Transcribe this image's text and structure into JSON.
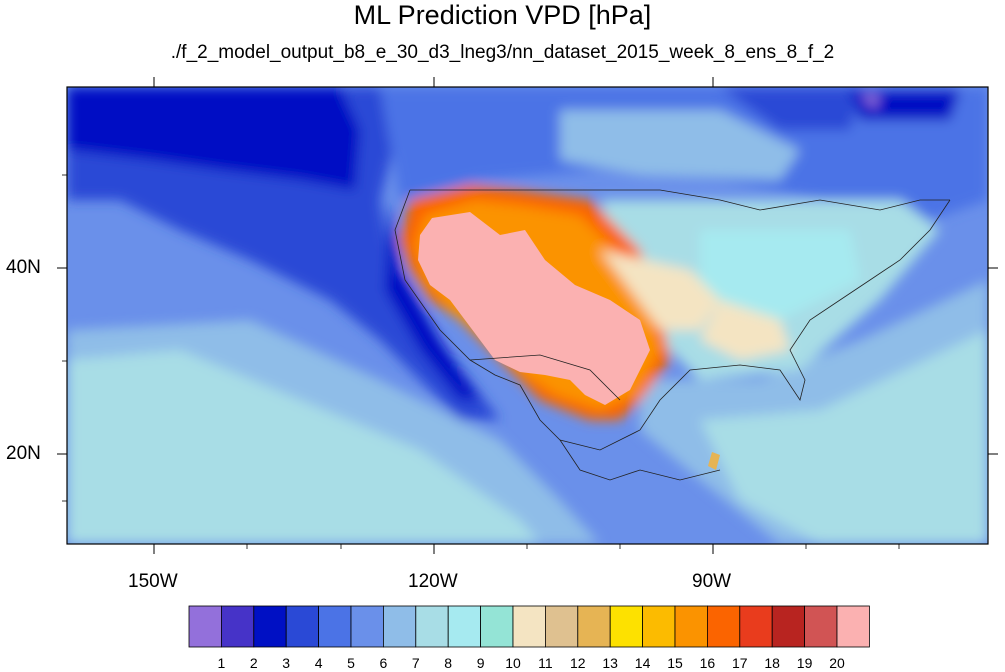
{
  "title": "ML Prediction VPD [hPa]",
  "subtitle": "./f_2_model_output_b8_e_30_d3_lneg3/nn_dataset_2015_week_8_ens_8_f_2",
  "map": {
    "region": "North America and eastern Pacific",
    "variable": "VPD",
    "units": "hPa",
    "lon_ticks": [
      {
        "lon": -150,
        "label": "150W"
      },
      {
        "lon": -120,
        "label": "120W"
      },
      {
        "lon": -90,
        "label": "90W"
      }
    ],
    "lat_ticks": [
      {
        "lat": 40,
        "label": "40N"
      },
      {
        "lat": 20,
        "label": "20N"
      }
    ],
    "lon_range": [
      -160,
      -60
    ],
    "lat_range": [
      11,
      60
    ]
  },
  "colorbar": {
    "labels": [
      "1",
      "2",
      "3",
      "4",
      "5",
      "6",
      "7",
      "8",
      "9",
      "10",
      "11",
      "12",
      "13",
      "14",
      "15",
      "16",
      "17",
      "18",
      "19",
      "20"
    ],
    "colors": [
      "#9370db",
      "#4633c8",
      "#0010c4",
      "#2a49d6",
      "#4b73e6",
      "#6a90ea",
      "#8fbde8",
      "#a8dde6",
      "#a6eaf0",
      "#94e4d6",
      "#f4e4c2",
      "#dfc190",
      "#e6b454",
      "#fde100",
      "#fcbb00",
      "#fb9300",
      "#fb6400",
      "#e93c1d",
      "#b82420",
      "#d15454",
      "#fbb1b1"
    ]
  },
  "colors": {
    "ocean_deep": "#0000c8",
    "ocean": "#2a49d6",
    "land_dry": "#fbb1b1"
  }
}
